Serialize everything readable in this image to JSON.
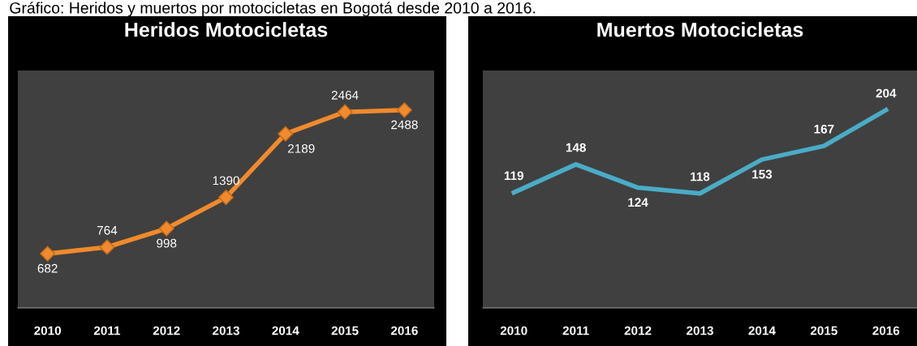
{
  "chart_data": [
    {
      "type": "line",
      "title": "Heridos Motocicletas",
      "categories": [
        "2010",
        "2011",
        "2012",
        "2013",
        "2014",
        "2015",
        "2016"
      ],
      "series": [
        {
          "color": "#f08a2c",
          "values": [
            682,
            764,
            998,
            1390,
            2189,
            2464,
            2488
          ]
        }
      ],
      "marker": "diamond",
      "data_labels": true,
      "grid": false,
      "legend": false,
      "annotations": [
        "Gráfico: Heridos y muertos por motocicletas en Bogotá desde 2010 a 2016."
      ]
    },
    {
      "type": "line",
      "title": "Muertos Motocicletas",
      "categories": [
        "2010",
        "2011",
        "2012",
        "2013",
        "2014",
        "2015",
        "2016"
      ],
      "series": [
        {
          "color": "#4aacc6",
          "values": [
            119,
            148,
            124,
            118,
            153,
            167,
            204
          ]
        }
      ],
      "marker": "none",
      "data_labels": true,
      "grid": false,
      "legend": false
    }
  ]
}
